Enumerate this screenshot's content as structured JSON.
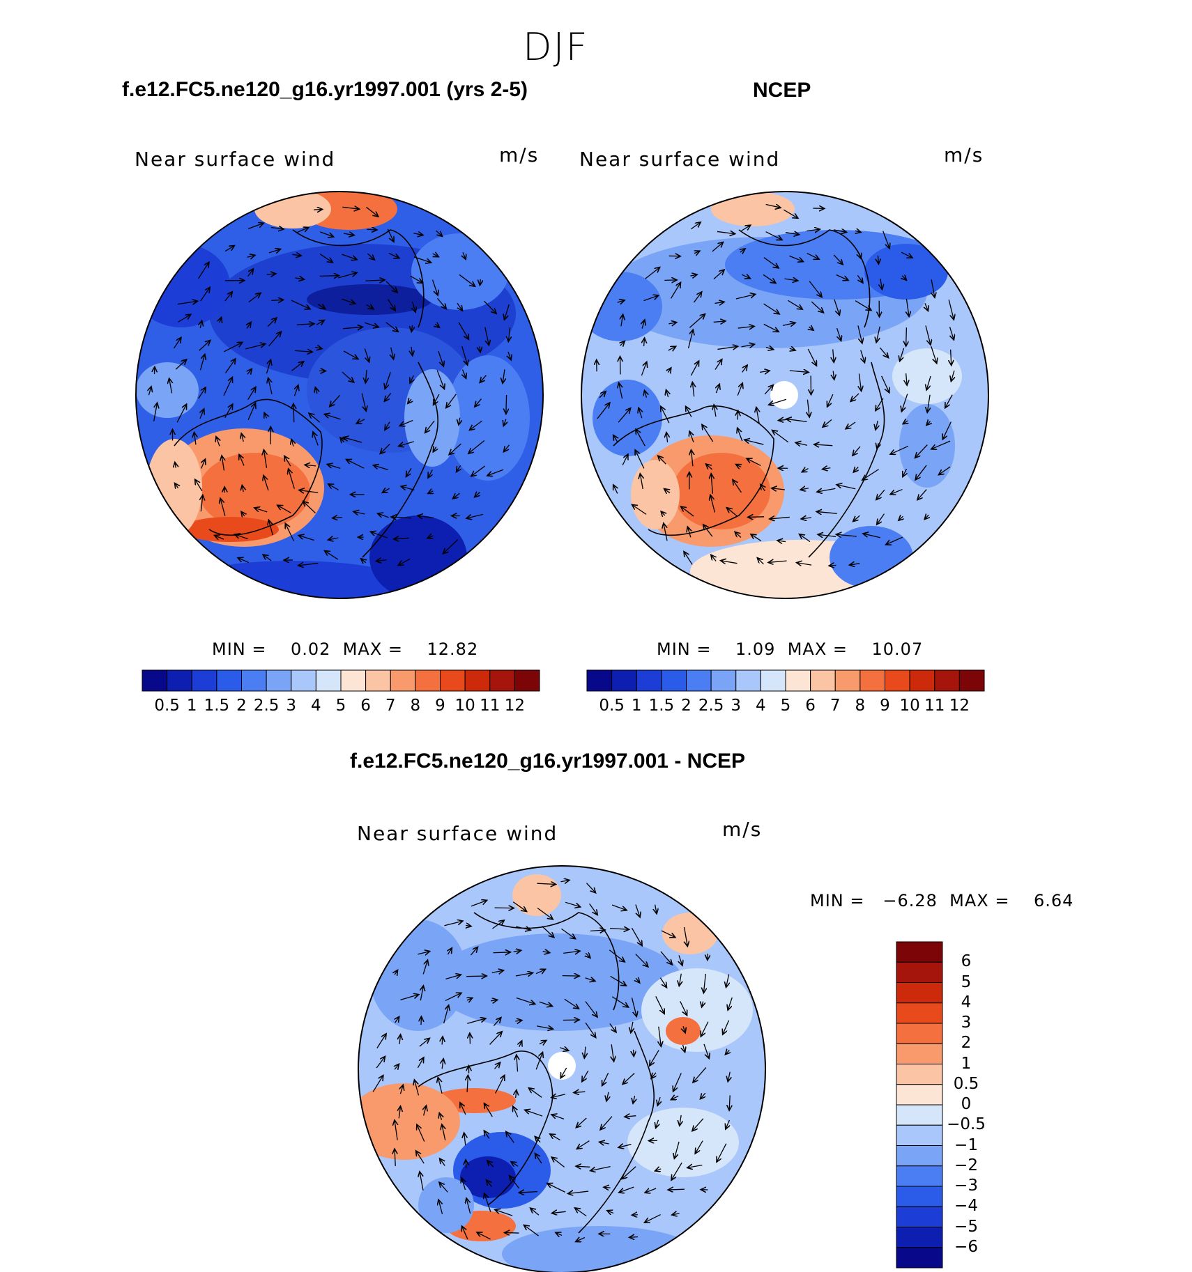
{
  "suptitle": "DJF",
  "panels": [
    {
      "case_title": "f.e12.FC5.ne120_g16.yr1997.001 (yrs 2-5)",
      "left_label": "Near surface wind",
      "units": "m/s",
      "min_max": "MIN =    0.02  MAX =    12.82"
    },
    {
      "case_title": "NCEP",
      "left_label": "Near surface wind",
      "units": "m/s",
      "min_max": "MIN =    1.09  MAX =    10.07"
    },
    {
      "case_title": "f.e12.FC5.ne120_g16.yr1997.001 - NCEP",
      "left_label": "Near surface wind",
      "units": "m/s",
      "min_max": "MIN =   −6.28  MAX =    6.64"
    }
  ],
  "colorbars": {
    "abs_labels": [
      "0.5",
      "1",
      "1.5",
      "2",
      "2.5",
      "3",
      "4",
      "5",
      "6",
      "7",
      "8",
      "9",
      "10",
      "11",
      "12"
    ],
    "abs_colors": [
      "#08088a",
      "#0c1fb0",
      "#1c3dd6",
      "#2a5be9",
      "#4a7ef2",
      "#7aa4f6",
      "#a9c7fa",
      "#d5e6fb",
      "#fde5d5",
      "#fbc4a4",
      "#f99a6d",
      "#f4703f",
      "#e94a1c",
      "#cc2a0b",
      "#a5150c",
      "#7c0508"
    ],
    "diff_labels": [
      "6",
      "5",
      "4",
      "3",
      "2",
      "1",
      "0.5",
      "0",
      "−0.5",
      "−1",
      "−2",
      "−3",
      "−4",
      "−5",
      "−6"
    ],
    "diff_colors": [
      "#7c0508",
      "#a5150c",
      "#cc2a0b",
      "#e94a1c",
      "#f4703f",
      "#f99a6d",
      "#fbc4a4",
      "#fde5d5",
      "#d5e6fb",
      "#a9c7fa",
      "#7aa4f6",
      "#4a7ef2",
      "#2a5be9",
      "#1c3dd6",
      "#0c1fb0",
      "#08088a"
    ]
  },
  "chart_data": {
    "type": "heatmap",
    "projection": "north polar stereographic",
    "variable": "Near surface wind",
    "units": "m/s",
    "season": "DJF",
    "fields": [
      {
        "name": "f.e12.FC5.ne120_g16.yr1997.001 (yrs 2-5)",
        "min": 0.02,
        "max": 12.82,
        "levels": [
          0.5,
          1,
          1.5,
          2,
          2.5,
          3,
          4,
          5,
          6,
          7,
          8,
          9,
          10,
          11,
          12
        ]
      },
      {
        "name": "NCEP",
        "min": 1.09,
        "max": 10.07,
        "levels": [
          0.5,
          1,
          1.5,
          2,
          2.5,
          3,
          4,
          5,
          6,
          7,
          8,
          9,
          10,
          11,
          12
        ]
      },
      {
        "name": "f.e12.FC5.ne120_g16.yr1997.001 - NCEP",
        "min": -6.28,
        "max": 6.64,
        "levels": [
          -6,
          -5,
          -4,
          -3,
          -2,
          -1,
          -0.5,
          0,
          0.5,
          1,
          2,
          3,
          4,
          5,
          6
        ]
      }
    ]
  }
}
